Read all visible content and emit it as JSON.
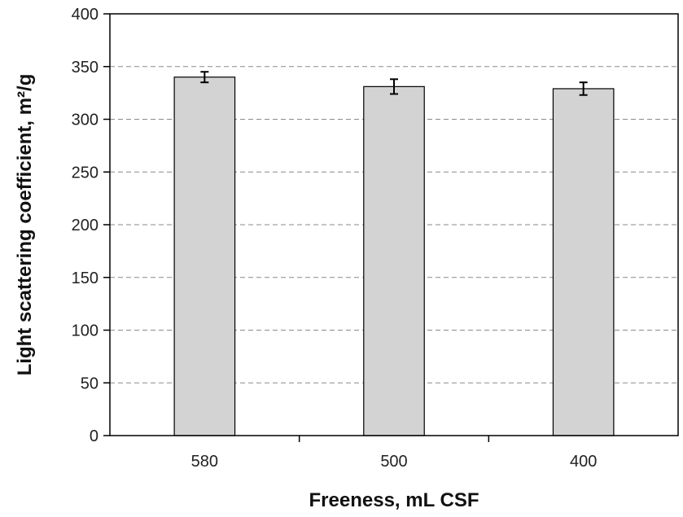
{
  "chart_data": {
    "type": "bar",
    "xlabel": "Freeness, mL CSF",
    "ylabel": "Light scattering coefficient, m²/g",
    "categories": [
      "580",
      "500",
      "400"
    ],
    "values": [
      340,
      331,
      329
    ],
    "error": [
      5,
      7,
      6
    ],
    "ylim": [
      0,
      400
    ],
    "yticks": [
      0,
      50,
      100,
      150,
      200,
      250,
      300,
      350,
      400
    ],
    "grid": "horizontal dashed",
    "legend": "none",
    "bar_color": "#d3d3d3",
    "bar_edge_color": "#000000"
  }
}
